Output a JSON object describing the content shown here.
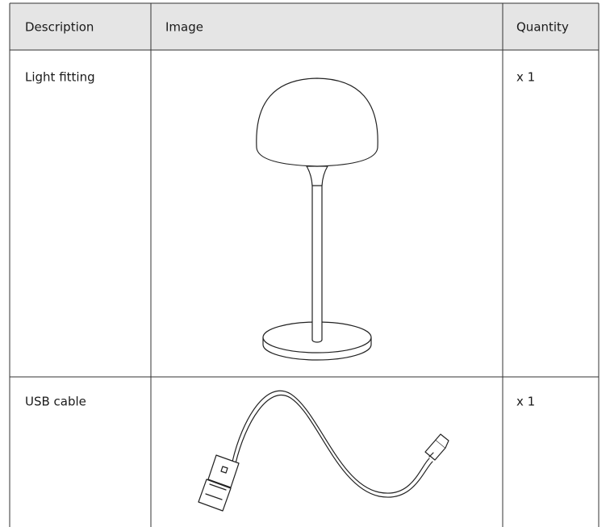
{
  "table": {
    "header": [
      "Description",
      "Image",
      "Quantity"
    ],
    "rows": [
      [
        "Light fitting",
        "x 1"
      ],
      [
        "USB cable",
        "x 1"
      ]
    ]
  }
}
